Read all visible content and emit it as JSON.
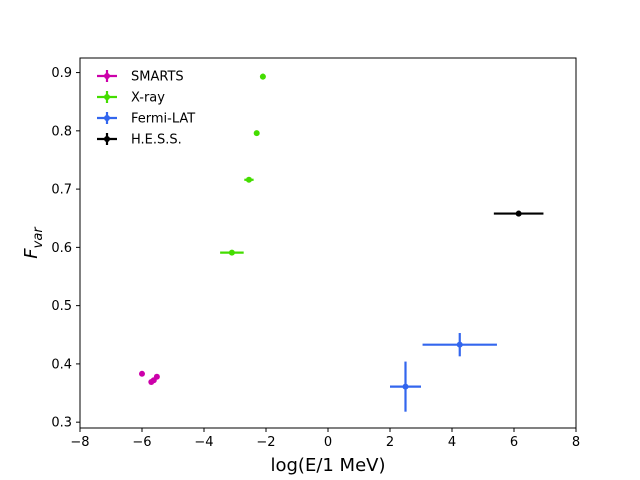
{
  "chart_data": {
    "type": "scatter",
    "title": "",
    "xlabel": "log(E/1 MeV)",
    "ylabel_main": "F",
    "ylabel_sub": "var",
    "xlim": [
      -8,
      8
    ],
    "ylim": [
      0.29,
      0.925
    ],
    "xticks": [
      -8,
      -6,
      -4,
      -2,
      0,
      2,
      4,
      6,
      8
    ],
    "xtick_labels": [
      "−8",
      "−6",
      "−4",
      "−2",
      "0",
      "2",
      "4",
      "6",
      "8"
    ],
    "yticks": [
      0.3,
      0.4,
      0.5,
      0.6,
      0.7,
      0.8,
      0.9
    ],
    "ytick_labels": [
      "0.3",
      "0.4",
      "0.5",
      "0.6",
      "0.7",
      "0.8",
      "0.9"
    ],
    "grid": false,
    "legend_position": "top-left",
    "series": [
      {
        "name": "SMARTS",
        "color": "#cc00aa",
        "points": [
          {
            "x": -6.0,
            "y": 0.383,
            "xerr": 0.05,
            "yerr": 0.003
          },
          {
            "x": -5.7,
            "y": 0.369,
            "xerr": 0.05,
            "yerr": 0.003
          },
          {
            "x": -5.62,
            "y": 0.372,
            "xerr": 0.05,
            "yerr": 0.003
          },
          {
            "x": -5.52,
            "y": 0.378,
            "xerr": 0.05,
            "yerr": 0.003
          }
        ]
      },
      {
        "name": "X-ray",
        "color": "#44dd00",
        "points": [
          {
            "x": -3.1,
            "y": 0.591,
            "xerr": 0.38,
            "yerr": 0.004
          },
          {
            "x": -2.55,
            "y": 0.716,
            "xerr": 0.15,
            "yerr": 0.004
          },
          {
            "x": -2.3,
            "y": 0.796,
            "xerr": 0.08,
            "yerr": 0.004
          },
          {
            "x": -2.1,
            "y": 0.893,
            "xerr": 0.06,
            "yerr": 0.005
          }
        ]
      },
      {
        "name": "Fermi-LAT",
        "color": "#3366ee",
        "points": [
          {
            "x": 2.5,
            "y": 0.361,
            "xerr": 0.5,
            "yerr": 0.043
          },
          {
            "x": 4.25,
            "y": 0.433,
            "xerr": 1.2,
            "yerr": 0.02
          }
        ]
      },
      {
        "name": "H.E.S.S.",
        "color": "#000000",
        "points": [
          {
            "x": 6.15,
            "y": 0.658,
            "xerr": 0.8,
            "yerr": 0.005
          }
        ]
      }
    ]
  }
}
